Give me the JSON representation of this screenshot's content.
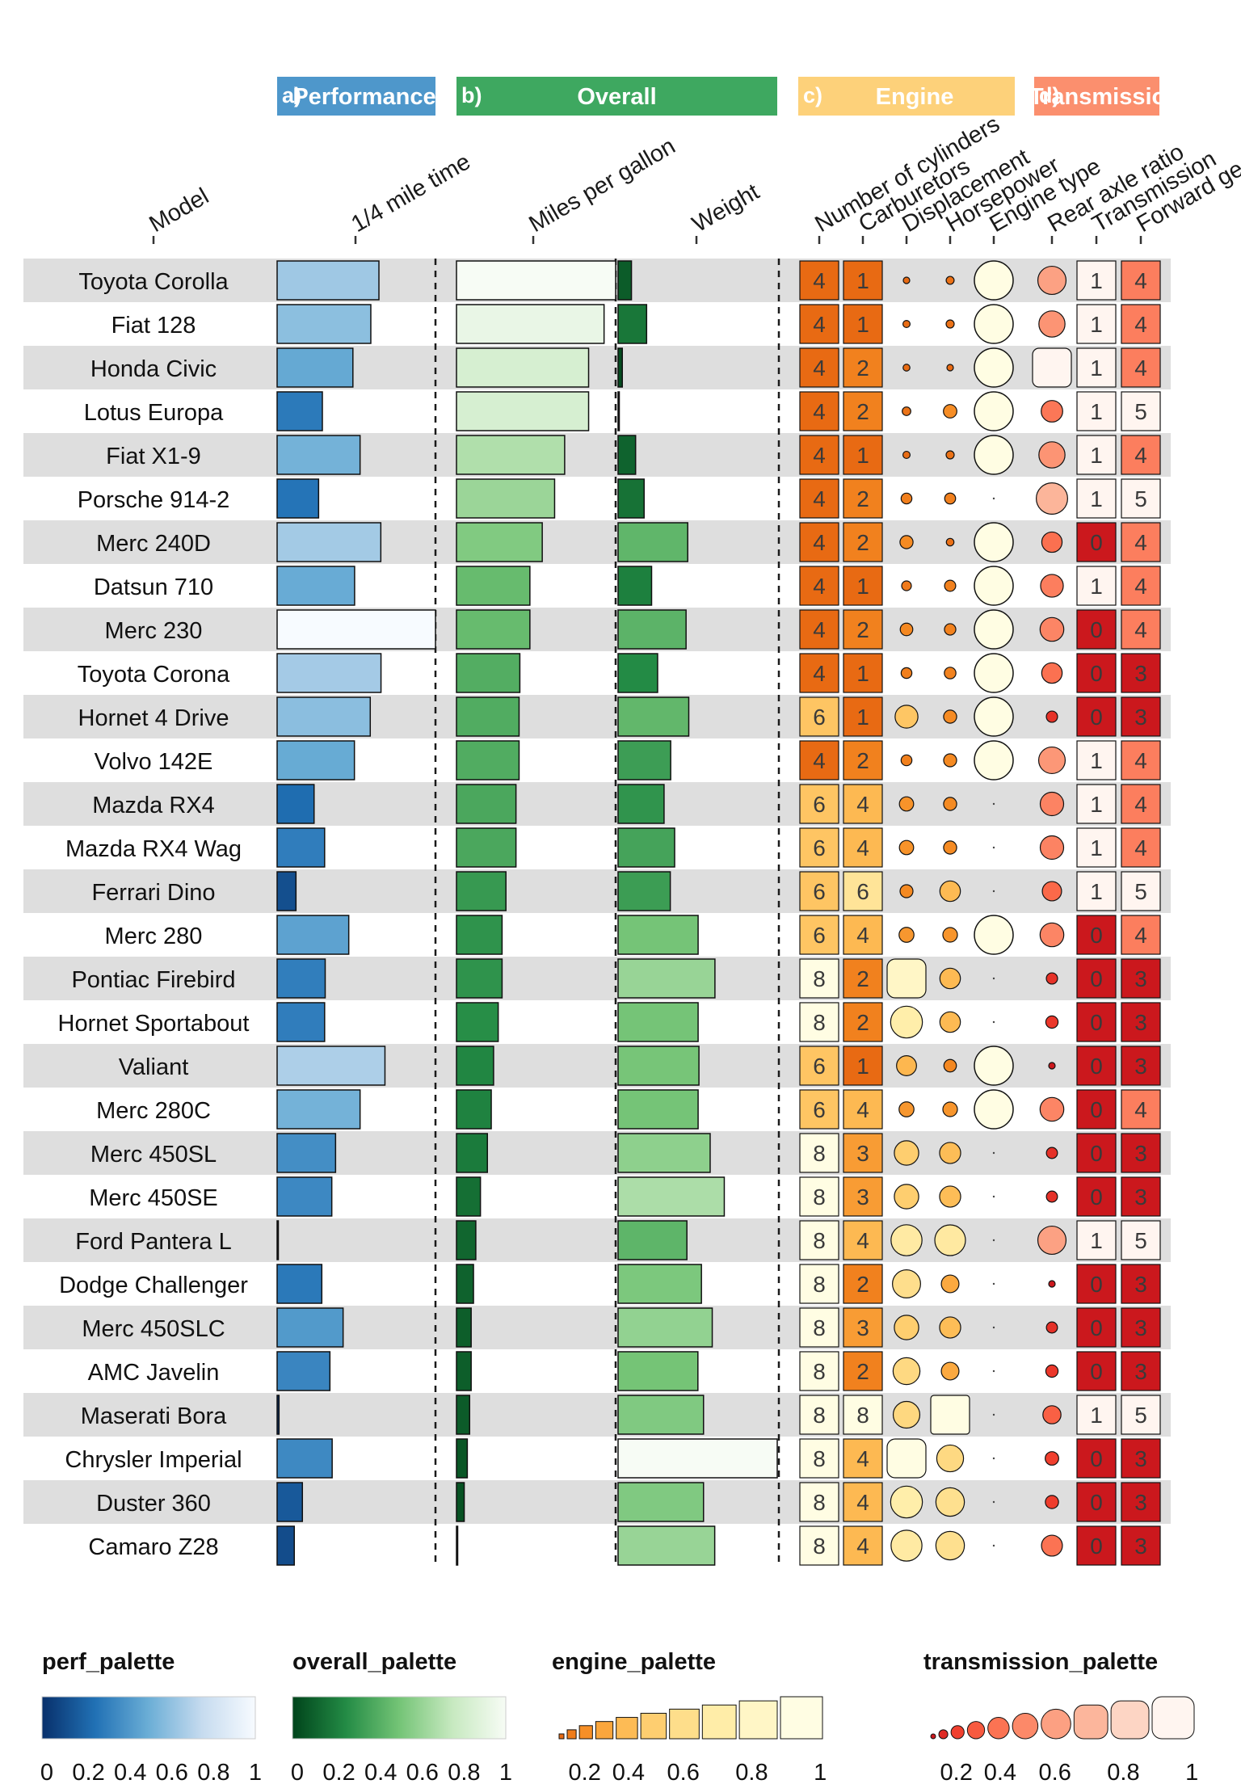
{
  "chart_data": {
    "type": "table",
    "groups": [
      {
        "key": "perf",
        "tag": "a)",
        "label": "Performance",
        "color": "#4e97cb"
      },
      {
        "key": "overall",
        "tag": "b)",
        "label": "Overall",
        "color": "#3ea860"
      },
      {
        "key": "engine",
        "tag": "c)",
        "label": "Engine",
        "color": "#fdd17a"
      },
      {
        "key": "trans",
        "tag": "d)",
        "label": "Transmission",
        "color": "#fb8f6e"
      }
    ],
    "column_labels": {
      "model": "Model",
      "qsec": "1/4 mile time",
      "mpg": "Miles per gallon",
      "wt": "Weight",
      "cyl": "Number of cylinders",
      "carb": "Carburetors",
      "disp": "Displacement",
      "hp": "Horsepower",
      "vs": "Engine type",
      "drat": "Rear axle ratio",
      "am": "Transmission",
      "gear": "Forward gears"
    },
    "columns": [
      "model",
      "qsec",
      "mpg",
      "wt",
      "cyl",
      "carb",
      "disp",
      "hp",
      "vs",
      "drat",
      "am",
      "gear"
    ],
    "rows": [
      [
        "Toyota Corolla",
        19.9,
        33.9,
        1.835,
        4,
        1,
        71.1,
        65,
        1,
        4.22,
        1,
        4
      ],
      [
        "Fiat 128",
        19.47,
        32.4,
        2.2,
        4,
        1,
        78.7,
        66,
        1,
        4.08,
        1,
        4
      ],
      [
        "Honda Civic",
        18.52,
        30.4,
        1.615,
        4,
        2,
        75.7,
        52,
        1,
        4.93,
        1,
        4
      ],
      [
        "Lotus Europa",
        16.9,
        30.4,
        1.513,
        4,
        2,
        95.1,
        113,
        1,
        3.77,
        1,
        5
      ],
      [
        "Fiat X1-9",
        18.9,
        27.3,
        1.935,
        4,
        1,
        79.0,
        66,
        1,
        4.08,
        1,
        4
      ],
      [
        "Porsche 914-2",
        16.7,
        26.0,
        2.14,
        4,
        2,
        120.3,
        91,
        0,
        4.43,
        1,
        5
      ],
      [
        "Merc 240D",
        20.0,
        24.4,
        3.19,
        4,
        2,
        146.7,
        62,
        1,
        3.69,
        0,
        4
      ],
      [
        "Datsun 710",
        18.61,
        22.8,
        2.32,
        4,
        1,
        108.0,
        93,
        1,
        3.85,
        1,
        4
      ],
      [
        "Merc 230",
        22.9,
        22.8,
        3.15,
        4,
        2,
        140.8,
        95,
        1,
        3.92,
        0,
        4
      ],
      [
        "Toyota Corona",
        20.01,
        21.5,
        2.465,
        4,
        1,
        120.1,
        97,
        1,
        3.7,
        0,
        3
      ],
      [
        "Hornet 4 Drive",
        19.44,
        21.4,
        3.215,
        6,
        1,
        258.0,
        110,
        1,
        3.08,
        0,
        3
      ],
      [
        "Volvo 142E",
        18.6,
        21.4,
        2.78,
        4,
        2,
        121.0,
        109,
        1,
        4.11,
        1,
        4
      ],
      [
        "Mazda RX4",
        16.46,
        21.0,
        2.62,
        6,
        4,
        160.0,
        110,
        0,
        3.9,
        1,
        4
      ],
      [
        "Mazda RX4 Wag",
        17.02,
        21.0,
        2.875,
        6,
        4,
        160.0,
        110,
        0,
        3.9,
        1,
        4
      ],
      [
        "Ferrari Dino",
        15.5,
        19.7,
        2.77,
        6,
        6,
        145.0,
        175,
        0,
        3.62,
        1,
        5
      ],
      [
        "Merc 280",
        18.3,
        19.2,
        3.44,
        6,
        4,
        167.6,
        123,
        1,
        3.92,
        0,
        4
      ],
      [
        "Pontiac Firebird",
        17.05,
        19.2,
        3.845,
        8,
        2,
        400.0,
        175,
        0,
        3.08,
        0,
        3
      ],
      [
        "Hornet Sportabout",
        17.02,
        18.7,
        3.44,
        8,
        2,
        360.0,
        175,
        0,
        3.15,
        0,
        3
      ],
      [
        "Valiant",
        20.22,
        18.1,
        3.46,
        6,
        1,
        225.0,
        105,
        1,
        2.76,
        0,
        3
      ],
      [
        "Merc 280C",
        18.9,
        17.8,
        3.44,
        6,
        4,
        167.6,
        123,
        1,
        3.92,
        0,
        4
      ],
      [
        "Merc 450SL",
        17.6,
        17.3,
        3.73,
        8,
        3,
        275.8,
        180,
        0,
        3.07,
        0,
        3
      ],
      [
        "Merc 450SE",
        17.4,
        16.4,
        4.07,
        8,
        3,
        275.8,
        180,
        0,
        3.07,
        0,
        3
      ],
      [
        "Ford Pantera L",
        14.5,
        15.8,
        3.17,
        8,
        4,
        351.0,
        264,
        0,
        4.22,
        1,
        5
      ],
      [
        "Dodge Challenger",
        16.87,
        15.5,
        3.52,
        8,
        2,
        318.0,
        150,
        0,
        2.76,
        0,
        3
      ],
      [
        "Merc 450SLC",
        18.0,
        15.2,
        3.78,
        8,
        3,
        275.8,
        180,
        0,
        3.07,
        0,
        3
      ],
      [
        "AMC Javelin",
        17.3,
        15.2,
        3.435,
        8,
        2,
        304.0,
        150,
        0,
        3.15,
        0,
        3
      ],
      [
        "Maserati Bora",
        14.6,
        15.0,
        3.57,
        8,
        8,
        301.0,
        335,
        0,
        3.54,
        1,
        5
      ],
      [
        "Chrysler Imperial",
        17.42,
        14.7,
        5.345,
        8,
        4,
        440.0,
        230,
        0,
        3.23,
        0,
        3
      ],
      [
        "Duster 360",
        15.84,
        14.3,
        3.57,
        8,
        4,
        360.0,
        245,
        0,
        3.21,
        0,
        3
      ],
      [
        "Camaro Z28",
        15.41,
        13.3,
        3.84,
        8,
        4,
        350.0,
        245,
        0,
        3.73,
        0,
        3
      ]
    ],
    "legends": [
      {
        "key": "perf",
        "title": "perf_palette",
        "kind": "gradient",
        "colors": [
          "#08306b",
          "#2171b5",
          "#6baed6",
          "#c6dbef",
          "#f7fbff"
        ],
        "ticks": [
          "0",
          "0.2",
          "0.4",
          "0.6",
          "0.8",
          "1"
        ]
      },
      {
        "key": "overall",
        "title": "overall_palette",
        "kind": "gradient",
        "colors": [
          "#00441b",
          "#238b45",
          "#74c476",
          "#c7e9c0",
          "#f7fcf5"
        ],
        "ticks": [
          "0",
          "0.2",
          "0.4",
          "0.6",
          "0.8",
          "1"
        ]
      },
      {
        "key": "engine",
        "title": "engine_palette",
        "kind": "squares",
        "ticks": [
          "0.2",
          "0.4",
          "0.6",
          "0.8",
          "1"
        ]
      },
      {
        "key": "trans",
        "title": "transmission_palette",
        "kind": "circles",
        "ticks": [
          "0.2",
          "0.4",
          "0.6",
          "0.8",
          "1"
        ]
      }
    ]
  }
}
